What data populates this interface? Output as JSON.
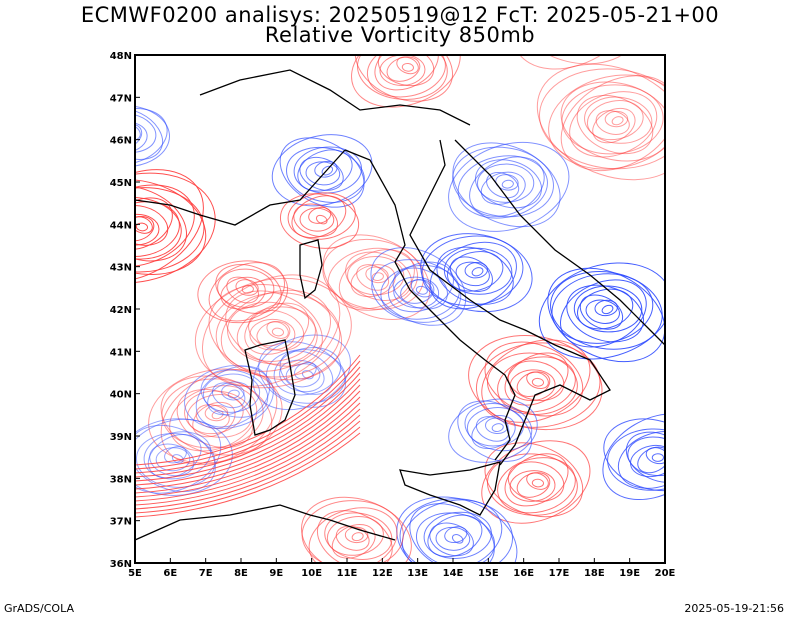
{
  "header": {
    "title_line1": "ECMWF0200 analisys: 20250519@12 FcT: 2025-05-21+00",
    "title_line2": "Relative Vorticity 850mb"
  },
  "map": {
    "lon_labels": [
      "5E",
      "6E",
      "7E",
      "8E",
      "9E",
      "10E",
      "11E",
      "12E",
      "13E",
      "14E",
      "15E",
      "16E",
      "17E",
      "18E",
      "19E",
      "20E"
    ],
    "lat_labels": [
      "48N",
      "47N",
      "46N",
      "45N",
      "44N",
      "43N",
      "42N",
      "41N",
      "40N",
      "39N",
      "38N",
      "37N",
      "36N"
    ],
    "lon_range": [
      5,
      20
    ],
    "lat_range": [
      36,
      48
    ],
    "colors": {
      "positive": "#ff3b3b",
      "negative": "#2f4bff",
      "coast": "#000000"
    }
  },
  "footer": {
    "left": "GrADS/COLA",
    "right": "2025-05-19-21:56"
  }
}
